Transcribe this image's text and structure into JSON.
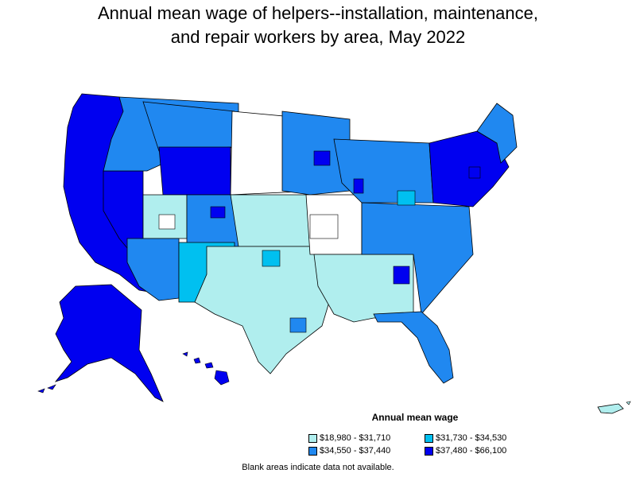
{
  "title": {
    "line1": "Annual mean wage of helpers--installation, maintenance,",
    "line2": "and repair workers by area, May 2022"
  },
  "legend": {
    "title": "Annual mean wage",
    "items": [
      {
        "label": "$18,980 - $31,710",
        "color": "#b0eeee"
      },
      {
        "label": "$31,730 - $34,530",
        "color": "#00c0f0"
      },
      {
        "label": "$34,550 - $37,440",
        "color": "#2088f0"
      },
      {
        "label": "$37,480 - $66,100",
        "color": "#0000f0"
      }
    ]
  },
  "note": "Blank areas indicate data not available.",
  "colors": {
    "blank": "#ffffff",
    "border": "#000000"
  }
}
